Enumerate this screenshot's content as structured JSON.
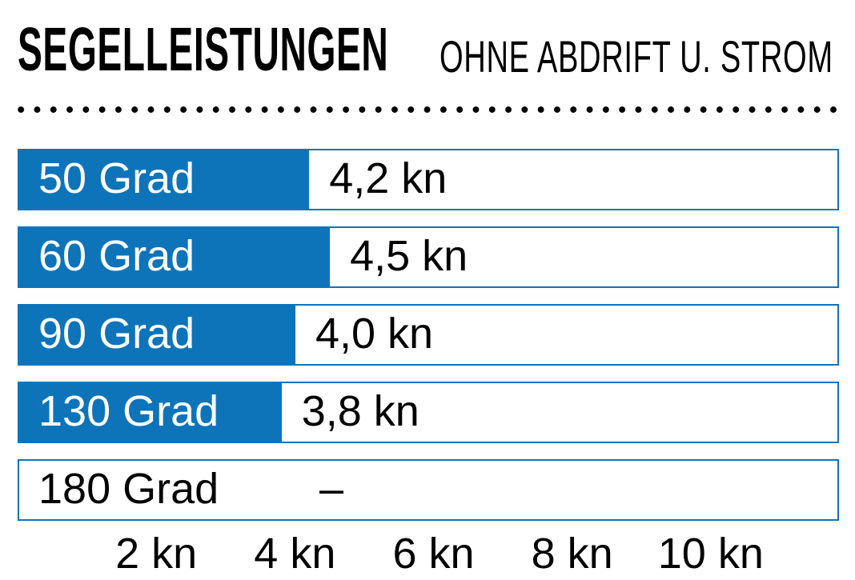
{
  "title": {
    "main": "SEGELLEISTUNGEN",
    "sub": "OHNE ABDRIFT U. STROM"
  },
  "chart_data": {
    "type": "bar",
    "orientation": "horizontal",
    "title": "SEGELLEISTUNGEN OHNE ABDRIFT U. STROM",
    "categories": [
      "50 Grad",
      "60 Grad",
      "90 Grad",
      "130 Grad",
      "180 Grad"
    ],
    "values": [
      4.2,
      4.5,
      4.0,
      3.8,
      null
    ],
    "value_labels": [
      "4,2 kn",
      "4,5 kn",
      "4,0 kn",
      "3,8 kn",
      "–"
    ],
    "unit": "kn",
    "xlabel": "",
    "ylabel": "",
    "x_ticks": [
      2,
      4,
      6,
      8,
      10
    ],
    "x_tick_labels": [
      "2 kn",
      "4 kn",
      "6 kn",
      "8 kn",
      "10 kn"
    ],
    "xlim": [
      0,
      11.85
    ],
    "grid": false,
    "legend": false
  },
  "colors": {
    "bar_blue": "#0d74ba",
    "row_border_blue": "#0d74ba",
    "text_black": "#000000",
    "bar_label_white": "#ffffff",
    "background": "#ffffff"
  }
}
